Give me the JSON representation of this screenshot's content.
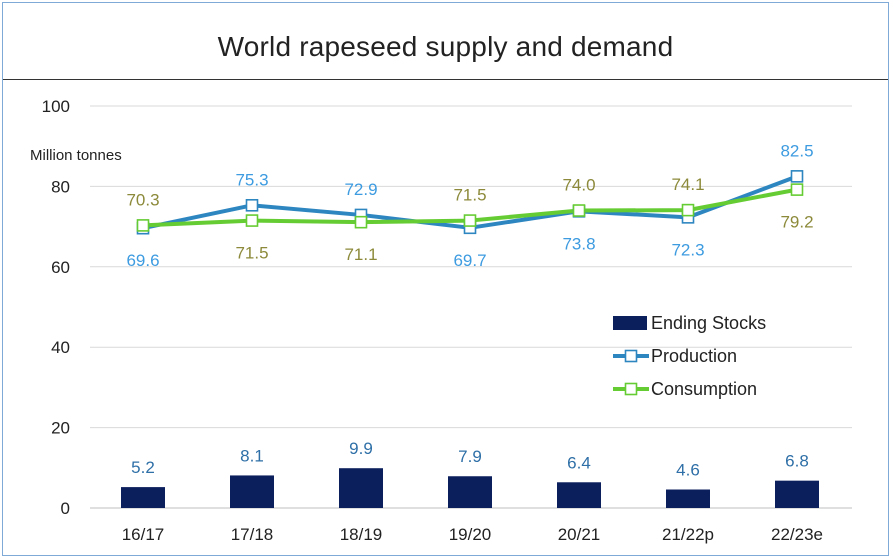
{
  "chart_data": {
    "type": "bar",
    "title": "World rapeseed supply and demand",
    "ylabel": "Million tonnes",
    "ylim": [
      0,
      100
    ],
    "yticks": [
      0,
      20,
      40,
      60,
      80,
      100
    ],
    "grid": true,
    "legend_placement": "right",
    "categories": [
      "16/17",
      "17/18",
      "18/19",
      "19/20",
      "20/21",
      "21/22p",
      "22/23e"
    ],
    "series": [
      {
        "name": "Ending Stocks",
        "type": "bar",
        "color": "#0b1f5c",
        "values": [
          5.2,
          8.1,
          9.9,
          7.9,
          6.4,
          4.6,
          6.8
        ]
      },
      {
        "name": "Production",
        "type": "line",
        "color": "#2e86c1",
        "label_color": "#3d9be0",
        "values": [
          69.6,
          75.3,
          72.9,
          69.7,
          73.8,
          72.3,
          82.5
        ]
      },
      {
        "name": "Consumption",
        "type": "line",
        "color": "#66cc33",
        "label_color": "#8c8a3a",
        "values": [
          70.3,
          71.5,
          71.1,
          71.5,
          74.0,
          74.1,
          79.2
        ]
      }
    ]
  }
}
